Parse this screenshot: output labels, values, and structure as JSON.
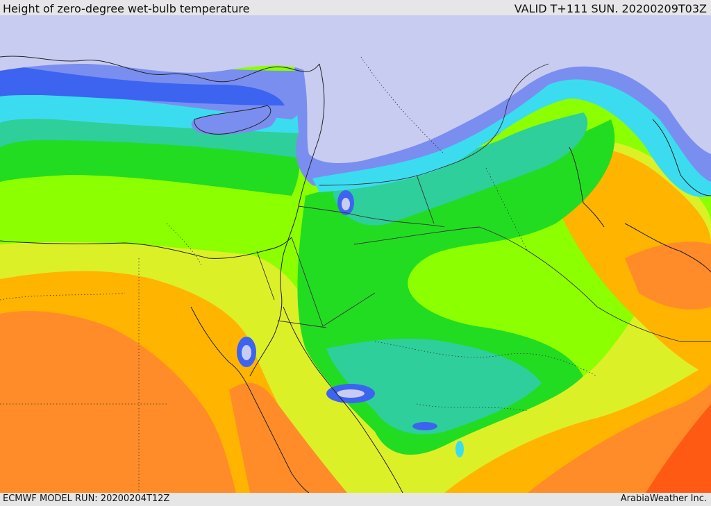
{
  "header": {
    "title": "Height of zero-degree wet-bulb temperature",
    "valid": "VALID T+111 SUN. 20200209T03Z"
  },
  "footer": {
    "model_run": "ECMWF MODEL RUN: 20200204T12Z",
    "credit": "ArabiaWeather Inc."
  },
  "palette": {
    "lavender": "#c8ccf0",
    "blue_mid": "#7a8ef0",
    "blue_deep": "#3c64f0",
    "cyan": "#3cdcf0",
    "teal": "#2ecf9a",
    "green": "#22dc22",
    "lime": "#8cff00",
    "yellow": "#dcf028",
    "orange": "#ffb400",
    "dark_orange": "#ff8c28",
    "red_orange": "#ff5a14",
    "coast_line": "#222222",
    "border_line": "#333333"
  }
}
